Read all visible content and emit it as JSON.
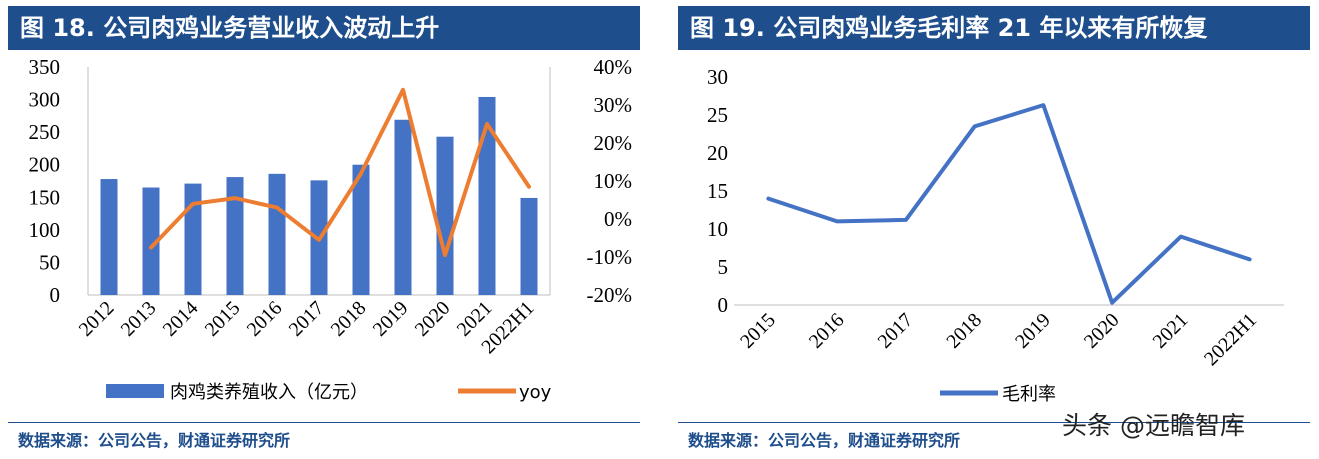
{
  "charts": [
    {
      "id": "left",
      "header": {
        "title": "图 18. 公司肉鸡业务营业收入波动上升"
      },
      "source": "数据来源：公司公告，财通证券研究所",
      "chart_data": {
        "type": "bar+line",
        "categories": [
          "2012",
          "2013",
          "2014",
          "2015",
          "2016",
          "2017",
          "2018",
          "2019",
          "2020",
          "2021",
          "2022H1"
        ],
        "series": [
          {
            "name": "肉鸡类养殖收入（亿元）",
            "type": "bar",
            "axis": "left",
            "color": "#4472c4",
            "values": [
              178,
              165,
              171,
              181,
              186,
              176,
              200,
              269,
              243,
              304,
              149
            ]
          },
          {
            "name": "yoy",
            "type": "line",
            "axis": "right",
            "color": "#ed7d31",
            "values": [
              null,
              -7.5,
              4,
              5.5,
              3,
              -5.5,
              12,
              34,
              -9.5,
              25,
              8.5
            ]
          }
        ],
        "y_left": {
          "min": 0,
          "max": 350,
          "ticks": [
            "350",
            "300",
            "250",
            "200",
            "150",
            "100",
            "50",
            "0"
          ]
        },
        "y_right": {
          "min": -20,
          "max": 40,
          "ticks": [
            "40%",
            "30%",
            "20%",
            "10%",
            "0%",
            "-10%",
            "-20%"
          ]
        },
        "grid": false,
        "legend_position": "bottom"
      }
    },
    {
      "id": "right",
      "header": {
        "title": "图 19. 公司肉鸡业务毛利率 21 年以来有所恢复"
      },
      "source": "数据来源：公司公告，财通证券研究所",
      "chart_data": {
        "type": "line",
        "categories": [
          "2015",
          "2016",
          "2017",
          "2018",
          "2019",
          "2020",
          "2021",
          "2022H1"
        ],
        "series": [
          {
            "name": "毛利率",
            "type": "line",
            "axis": "left",
            "color": "#4472c4",
            "values": [
              14,
              11,
              11.2,
              23.5,
              26.3,
              0.3,
              9,
              6
            ]
          }
        ],
        "y_left": {
          "min": 0,
          "max": 30,
          "ticks": [
            "30",
            "25",
            "20",
            "15",
            "10",
            "5",
            "0"
          ]
        },
        "grid": false,
        "legend_position": "bottom"
      }
    }
  ],
  "watermark": "头条 @远瞻智库"
}
